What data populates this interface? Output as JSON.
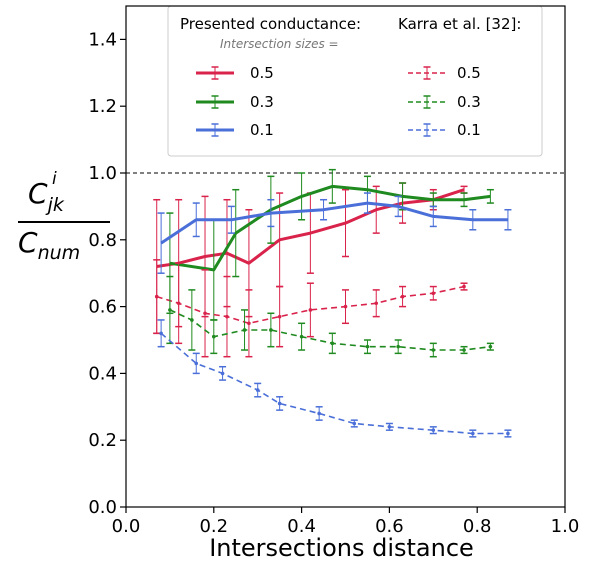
{
  "chart_data": {
    "type": "line",
    "xlabel": "Intersections distance",
    "ylabel": {
      "numerator_base": "C",
      "numerator_sub": "jk",
      "numerator_sup": "i",
      "denominator_base": "C",
      "denominator_sub": "num"
    },
    "xlim": [
      0.0,
      1.0
    ],
    "ylim": [
      0.0,
      1.5
    ],
    "xticks": [
      0.0,
      0.2,
      0.4,
      0.6,
      0.8,
      1.0
    ],
    "xtick_labels": [
      "0.0",
      "0.2",
      "0.4",
      "0.6",
      "0.8",
      "1.0"
    ],
    "yticks": [
      0.0,
      0.2,
      0.4,
      0.6,
      0.8,
      1.0,
      1.2,
      1.4
    ],
    "ytick_labels": [
      "0.0",
      "0.2",
      "0.4",
      "0.6",
      "0.8",
      "1.0",
      "1.2",
      "1.4"
    ],
    "reference_line": {
      "y": 1.0,
      "style": "dashed",
      "color": "#000000"
    },
    "legend": {
      "placement": "top",
      "header_left": "Presented conductance:",
      "header_right": "Karra et al. [32]:",
      "subheader": "Intersection sizes ="
    },
    "series": [
      {
        "name": "0.5",
        "group": "presented",
        "style": "solid",
        "color": "#d9234b",
        "x": [
          0.07,
          0.12,
          0.18,
          0.23,
          0.28,
          0.35,
          0.42,
          0.5,
          0.57,
          0.63,
          0.7,
          0.77
        ],
        "y": [
          0.72,
          0.73,
          0.75,
          0.76,
          0.73,
          0.8,
          0.82,
          0.85,
          0.89,
          0.91,
          0.92,
          0.95
        ],
        "err": [
          0.2,
          0.19,
          0.18,
          0.16,
          0.16,
          0.14,
          0.12,
          0.1,
          0.07,
          0.06,
          0.03,
          0.01
        ]
      },
      {
        "name": "0.3",
        "group": "presented",
        "style": "solid",
        "color": "#1f8a1f",
        "x": [
          0.1,
          0.2,
          0.25,
          0.33,
          0.4,
          0.47,
          0.55,
          0.63,
          0.7,
          0.77,
          0.83
        ],
        "y": [
          0.73,
          0.71,
          0.82,
          0.89,
          0.93,
          0.96,
          0.95,
          0.93,
          0.92,
          0.92,
          0.93
        ],
        "err": [
          0.15,
          0.15,
          0.13,
          0.1,
          0.07,
          0.05,
          0.04,
          0.04,
          0.02,
          0.02,
          0.02
        ]
      },
      {
        "name": "0.1",
        "group": "presented",
        "style": "solid",
        "color": "#4a6fd8",
        "x": [
          0.08,
          0.16,
          0.24,
          0.33,
          0.45,
          0.55,
          0.62,
          0.7,
          0.79,
          0.87
        ],
        "y": [
          0.79,
          0.86,
          0.86,
          0.88,
          0.89,
          0.91,
          0.9,
          0.87,
          0.86,
          0.86
        ],
        "err": [
          0.09,
          0.05,
          0.04,
          0.04,
          0.03,
          0.03,
          0.03,
          0.03,
          0.03,
          0.03
        ]
      },
      {
        "name": "0.5",
        "group": "karra",
        "style": "dashed",
        "color": "#d9234b",
        "x": [
          0.07,
          0.12,
          0.18,
          0.23,
          0.28,
          0.35,
          0.42,
          0.5,
          0.57,
          0.63,
          0.7,
          0.77
        ],
        "y": [
          0.63,
          0.61,
          0.58,
          0.57,
          0.55,
          0.57,
          0.59,
          0.6,
          0.61,
          0.63,
          0.64,
          0.66
        ],
        "err": [
          0.11,
          0.12,
          0.13,
          0.12,
          0.1,
          0.09,
          0.08,
          0.05,
          0.04,
          0.03,
          0.02,
          0.01
        ]
      },
      {
        "name": "0.3",
        "group": "karra",
        "style": "dashed",
        "color": "#1f8a1f",
        "x": [
          0.1,
          0.15,
          0.2,
          0.27,
          0.33,
          0.4,
          0.47,
          0.55,
          0.62,
          0.7,
          0.77,
          0.83
        ],
        "y": [
          0.59,
          0.56,
          0.51,
          0.53,
          0.53,
          0.51,
          0.49,
          0.48,
          0.48,
          0.47,
          0.47,
          0.48
        ],
        "err": [
          0.1,
          0.09,
          0.05,
          0.06,
          0.05,
          0.04,
          0.03,
          0.02,
          0.02,
          0.02,
          0.01,
          0.01
        ]
      },
      {
        "name": "0.1",
        "group": "karra",
        "style": "dashed",
        "color": "#4a6fd8",
        "x": [
          0.08,
          0.16,
          0.22,
          0.3,
          0.35,
          0.44,
          0.52,
          0.6,
          0.7,
          0.79,
          0.87
        ],
        "y": [
          0.52,
          0.43,
          0.4,
          0.35,
          0.31,
          0.28,
          0.25,
          0.24,
          0.23,
          0.22,
          0.22
        ],
        "err": [
          0.04,
          0.03,
          0.02,
          0.02,
          0.02,
          0.02,
          0.01,
          0.01,
          0.01,
          0.01,
          0.01
        ]
      }
    ]
  }
}
